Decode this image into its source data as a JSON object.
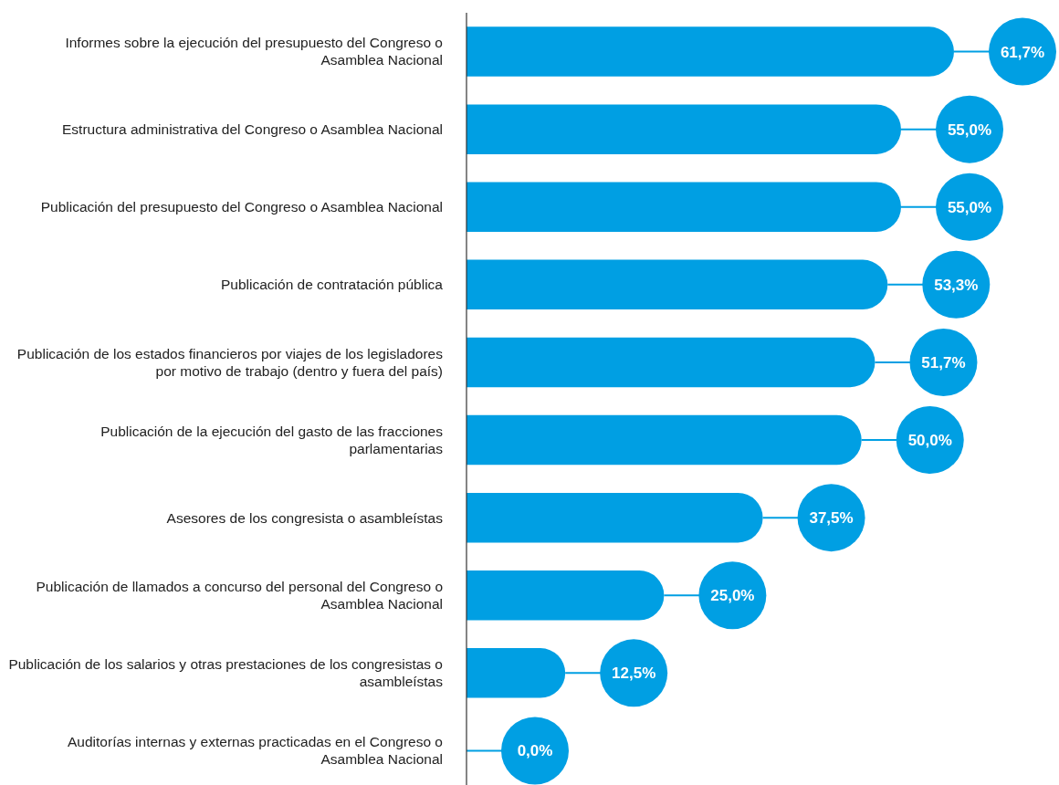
{
  "chart_data": {
    "type": "bar",
    "orientation": "horizontal",
    "color": "#009fe3",
    "categories": [
      "Informes sobre la ejecución del presupuesto del Congreso o Asamblea Nacional",
      "Estructura administrativa del Congreso o Asamblea Nacional",
      "Publicación del presupuesto del Congreso o Asamblea Nacional",
      "Publicación de contratación pública",
      "Publicación de los estados financieros por viajes de los legisladores por motivo de trabajo (dentro y fuera del país)",
      "Publicación de la ejecución del gasto de las fracciones parlamentarias",
      "Asesores de los congresista o asambleístas",
      "Publicación de llamados a concurso del personal del Congreso o Asamblea Nacional",
      "Publicación de los salarios y otras prestaciones de los congresistas o asambleístas",
      "Auditorías internas y externas practicadas en el Congreso o Asamblea Nacional"
    ],
    "values": [
      61.7,
      55.0,
      55.0,
      53.3,
      51.7,
      50.0,
      37.5,
      25.0,
      12.5,
      0.0
    ],
    "value_labels": [
      "61,7%",
      "55,0%",
      "55,0%",
      "53,3%",
      "51,7%",
      "50,0%",
      "37,5%",
      "25,0%",
      "12,5%",
      "0,0%"
    ]
  }
}
